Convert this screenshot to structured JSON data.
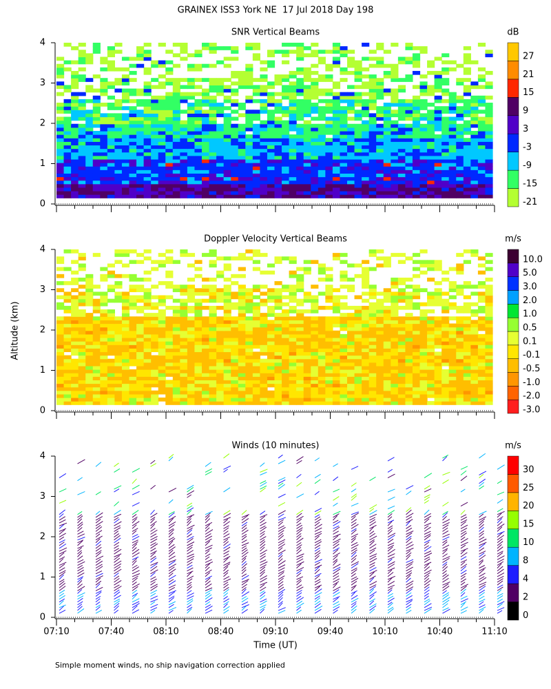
{
  "title": "GRAINEX ISS3 York NE  17 Jul 2018 Day 198",
  "y_label": "Altitude (km)",
  "x_label": "Time (UT)",
  "x_tick_labels": [
    "07:10",
    "07:40",
    "08:10",
    "08:40",
    "09:10",
    "09:40",
    "10:10",
    "10:40",
    "11:10"
  ],
  "footnote": "Simple moment winds, no ship navigation correction applied",
  "chart_data": [
    {
      "type": "contour",
      "title": "SNR Vertical Beams",
      "ylim": [
        0,
        4
      ],
      "yticks": [
        0,
        1,
        2,
        3,
        4
      ],
      "colorbar": {
        "label": "dB",
        "levels": [
          -21,
          -15,
          -9,
          -3,
          3,
          9,
          15,
          21,
          27
        ],
        "colors": [
          "#b4ff32",
          "#32ff64",
          "#00c8ff",
          "#0028ff",
          "#5000c8",
          "#500064",
          "#ff2800",
          "#ff8c00",
          "#ffc800"
        ]
      }
    },
    {
      "type": "contour",
      "title": "Doppler Velocity Vertical Beams",
      "ylim": [
        0,
        4
      ],
      "yticks": [
        0,
        1,
        2,
        3,
        4
      ],
      "colorbar": {
        "label": "m/s",
        "levels": [
          {
            "value": -3,
            "label": "-3.0"
          },
          {
            "value": -2,
            "label": "-2.0"
          },
          {
            "value": -1,
            "label": "-1.0"
          },
          -0.5,
          -0.1,
          0.1,
          0.5,
          {
            "value": 1,
            "label": "1.0"
          },
          {
            "value": 2,
            "label": "2.0"
          },
          {
            "value": 3,
            "label": "3.0"
          },
          {
            "value": 5,
            "label": "5.0"
          },
          {
            "value": 10,
            "label": "10.0"
          }
        ],
        "colors": [
          "#ff1e1e",
          "#ff6400",
          "#ff9600",
          "#ffbe00",
          "#ffe600",
          "#e6ff32",
          "#96ff32",
          "#00e632",
          "#00a0ff",
          "#0032ff",
          "#5000c8",
          "#3c0032"
        ]
      }
    },
    {
      "type": "barbs",
      "title": "Winds (10 minutes)",
      "ylim": [
        0,
        4
      ],
      "yticks": [
        0,
        1,
        2,
        3,
        4
      ],
      "colorbar": {
        "label": "m/s",
        "levels": [
          0,
          2,
          4,
          8,
          10,
          15,
          20,
          25,
          30
        ],
        "colors": [
          "#000000",
          "#500064",
          "#1e1eff",
          "#00b4ff",
          "#00e664",
          "#96ff00",
          "#ffb400",
          "#ff5a00",
          "#ff0000"
        ]
      }
    }
  ]
}
